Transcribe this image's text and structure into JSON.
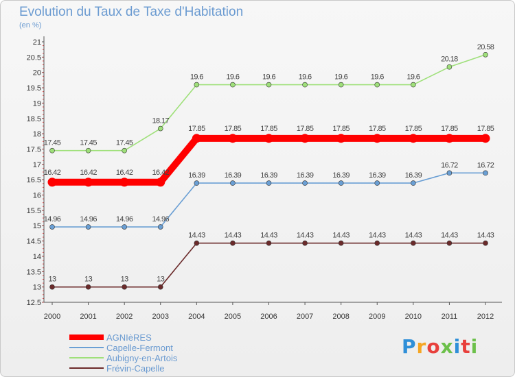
{
  "header": {
    "title": "Evolution du Taux de Taxe d'Habitation",
    "unit": "(en %)"
  },
  "chart_data": {
    "type": "line",
    "title": "Evolution du Taux de Taxe d'Habitation",
    "ylabel": "(en %)",
    "xlabel": "",
    "x": [
      "2000",
      "2001",
      "2002",
      "2003",
      "2004",
      "2005",
      "2006",
      "2007",
      "2008",
      "2009",
      "2010",
      "2011",
      "2012"
    ],
    "ylim": [
      12.5,
      21
    ],
    "yticks": [
      "12.5",
      "13",
      "13.5",
      "14",
      "14.5",
      "15",
      "15.5",
      "16",
      "16.5",
      "17",
      "17.5",
      "18",
      "18.5",
      "19",
      "19.5",
      "20",
      "20.5",
      "21"
    ],
    "grid": false,
    "legend_position": "bottom-left",
    "series": [
      {
        "name": "AGNIèRES",
        "color": "#ff0000",
        "values": [
          16.42,
          16.42,
          16.42,
          16.42,
          17.85,
          17.85,
          17.85,
          17.85,
          17.85,
          17.85,
          17.85,
          17.85,
          17.85
        ],
        "labels": [
          "16.42",
          "16.42",
          "16.42",
          "16.42",
          "17.85",
          "17.85",
          "17.85",
          "17.85",
          "17.85",
          "17.85",
          "17.85",
          "17.85",
          "17.85"
        ]
      },
      {
        "name": "Capelle-Fermont",
        "color": "#6a9fd4",
        "values": [
          14.96,
          14.96,
          14.96,
          14.96,
          16.39,
          16.39,
          16.39,
          16.39,
          16.39,
          16.39,
          16.39,
          16.72,
          16.72
        ],
        "labels": [
          "14.96",
          "14.96",
          "14.96",
          "14.96",
          "16.39",
          "16.39",
          "16.39",
          "16.39",
          "16.39",
          "16.39",
          "16.39",
          "16.72",
          "16.72"
        ]
      },
      {
        "name": "Aubigny-en-Artois",
        "color": "#9fe07a",
        "values": [
          17.45,
          17.45,
          17.45,
          18.17,
          19.6,
          19.6,
          19.6,
          19.6,
          19.6,
          19.6,
          19.6,
          20.18,
          20.58
        ],
        "labels": [
          "17.45",
          "17.45",
          "17.45",
          "18.17",
          "19.6",
          "19.6",
          "19.6",
          "19.6",
          "19.6",
          "19.6",
          "19.6",
          "20.18",
          "20.58"
        ]
      },
      {
        "name": "Frévin-Capelle",
        "color": "#6b2a2a",
        "values": [
          13,
          13,
          13,
          13,
          14.43,
          14.43,
          14.43,
          14.43,
          14.43,
          14.43,
          14.43,
          14.43,
          14.43
        ],
        "labels": [
          "13",
          "13",
          "13",
          "13",
          "14.43",
          "14.43",
          "14.43",
          "14.43",
          "14.43",
          "14.43",
          "14.43",
          "14.43",
          "14.43"
        ]
      }
    ]
  },
  "logo": {
    "text": "Proxiti",
    "colors": [
      "#2f8fd8",
      "#f5a623",
      "#e8403c",
      "#6cc04a",
      "#2f8fd8",
      "#e8403c",
      "#6cc04a"
    ]
  }
}
